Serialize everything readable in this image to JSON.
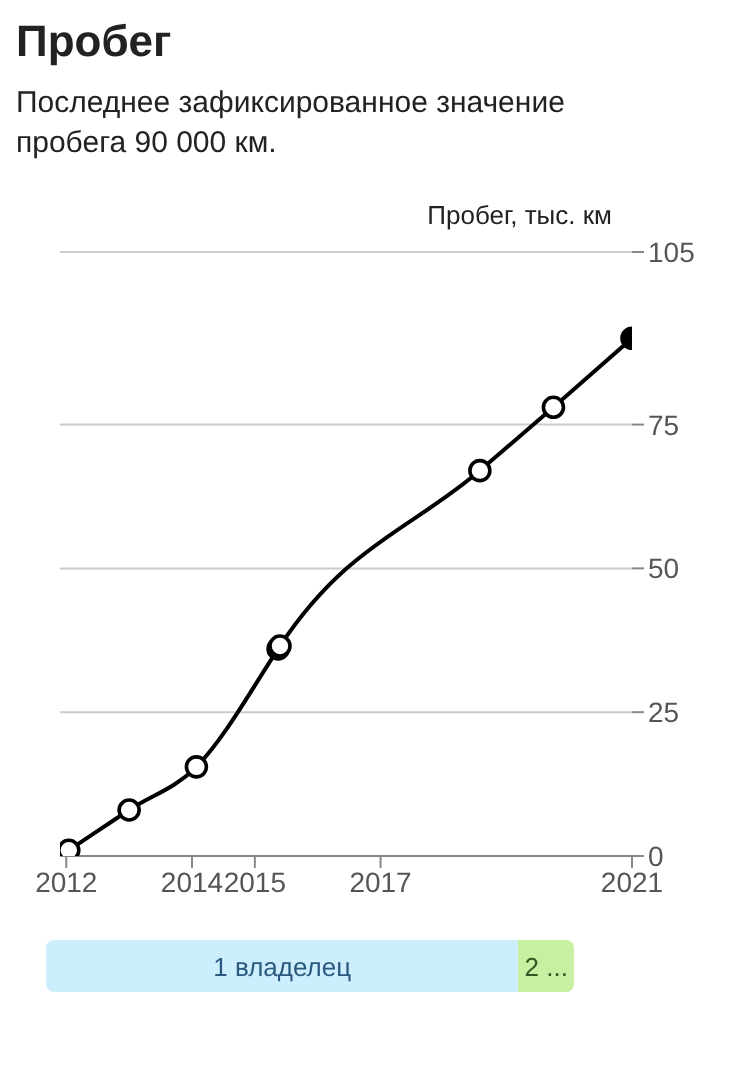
{
  "chart_data": {
    "type": "line",
    "title": "Пробег",
    "subtitle": "Последнее зафиксированное значение пробега 90 000 км.",
    "ylabel": "Пробег, тыс. км",
    "x": [
      2011.9,
      2012.04,
      2013.0,
      2014.07,
      2015.37,
      2015.4,
      2018.58,
      2019.75,
      2021.0
    ],
    "series": [
      {
        "color": "#000000",
        "values": [
          0,
          1,
          8,
          15.5,
          36,
          36.5,
          67,
          78,
          90
        ],
        "colors": [
          "#ffffff",
          "#ffffff",
          "#ffffff",
          "#ffffff",
          "#ffffff",
          "#ffffff",
          "#ffffff",
          "#ffffff",
          "#000000"
        ]
      }
    ],
    "xlim": [
      2011.9,
      2021
    ],
    "xticks": [
      2012,
      2014,
      2015,
      2017,
      2021
    ],
    "ylim": [
      0,
      105
    ],
    "yticks": [
      0,
      25,
      50,
      75,
      105
    ],
    "grid": "y",
    "marker": "circle",
    "line_style": "solid",
    "annotations": [
      "1 владелец",
      "2 ..."
    ]
  }
}
